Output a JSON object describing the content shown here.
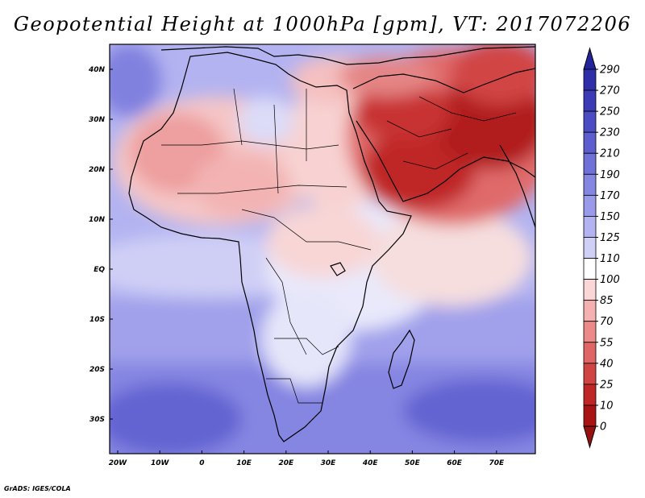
{
  "title": "Geopotential Height at 1000hPa [gpm], VT: 2017072206",
  "credit": "GrADS: IGES/COLA",
  "map": {
    "lon_labels": [
      "20W",
      "10W",
      "0",
      "10E",
      "20E",
      "30E",
      "40E",
      "50E",
      "60E",
      "70E"
    ],
    "lat_labels": [
      "40N",
      "30N",
      "20N",
      "10N",
      "EQ",
      "10S",
      "20S",
      "30S"
    ]
  },
  "colorbar": {
    "levels": [
      "290",
      "270",
      "250",
      "230",
      "210",
      "190",
      "170",
      "150",
      "125",
      "110",
      "100",
      "85",
      "70",
      "55",
      "40",
      "25",
      "10",
      "0"
    ],
    "colors": [
      "#23239b",
      "#2e2ea8",
      "#3b3bb6",
      "#4b4bc3",
      "#5d5dcf",
      "#7070d9",
      "#8585e2",
      "#9a9aea",
      "#b3b3f1",
      "#d0d0f6",
      "#ffffff",
      "#fbd6d6",
      "#f5b0b0",
      "#ec8a8a",
      "#e06565",
      "#d14444",
      "#bf2727",
      "#a81414",
      "#961010"
    ]
  }
}
